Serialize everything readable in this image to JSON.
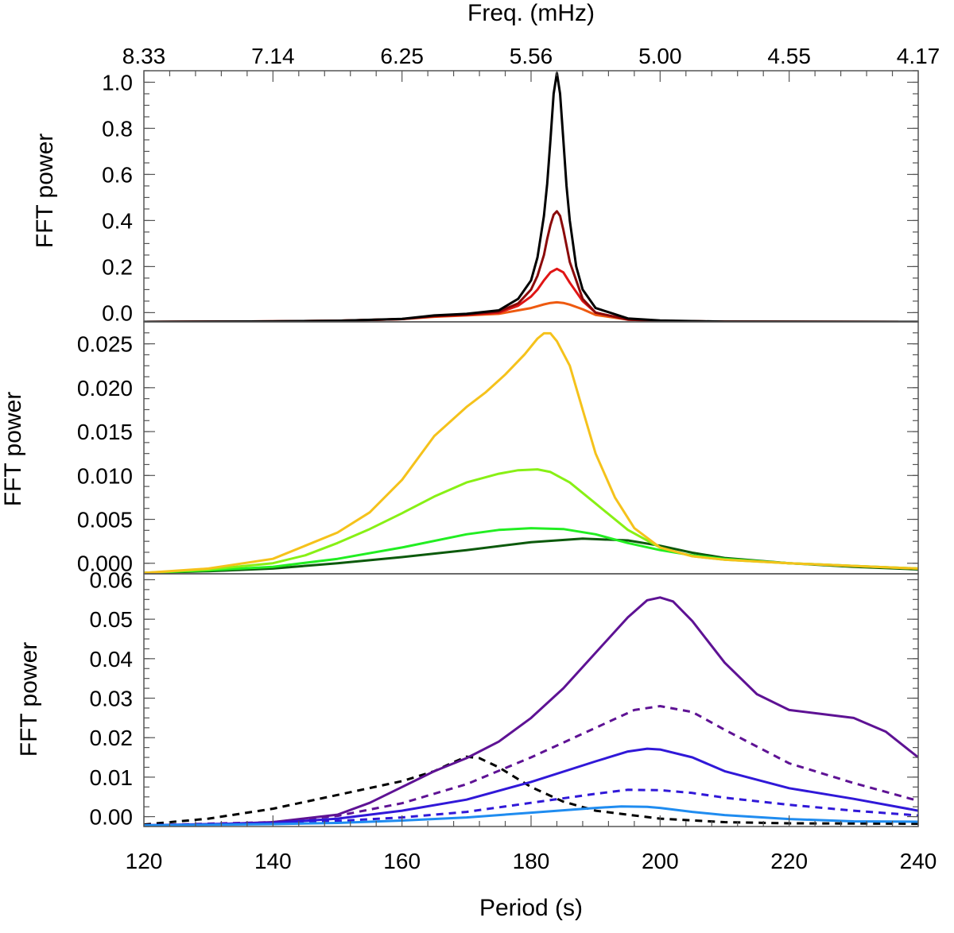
{
  "figure": {
    "top_axis_title": "Freq. (mHz)",
    "bottom_axis_title": "Period (s)",
    "top_tick_labels": [
      "8.33",
      "7.14",
      "6.25",
      "5.56",
      "5.00",
      "4.55",
      "4.17"
    ],
    "bottom_tick_labels": [
      "120",
      "140",
      "160",
      "180",
      "200",
      "220",
      "240"
    ]
  },
  "chart_data": [
    {
      "type": "line",
      "panel": "top",
      "ylabel": "FFT power",
      "xlabel": "Period (s)",
      "xlim": [
        120,
        240
      ],
      "ylim": [
        -0.04,
        1.05
      ],
      "yticks": [
        0.0,
        0.2,
        0.4,
        0.6,
        0.8,
        1.0
      ],
      "ytick_labels": [
        "0.0",
        "0.2",
        "0.4",
        "0.6",
        "0.8",
        "1.0"
      ],
      "series": [
        {
          "name": "orange",
          "color": "#ee5a10",
          "dash": false,
          "x": [
            120,
            140,
            150,
            160,
            165,
            170,
            175,
            178,
            180,
            181,
            182,
            183,
            184,
            185,
            186,
            188,
            190,
            195,
            200,
            210,
            240
          ],
          "y": [
            -0.04,
            -0.038,
            -0.035,
            -0.028,
            -0.018,
            -0.012,
            -0.005,
            0.01,
            0.02,
            0.028,
            0.036,
            0.042,
            0.045,
            0.042,
            0.035,
            0.015,
            -0.01,
            -0.03,
            -0.036,
            -0.039,
            -0.04
          ]
        },
        {
          "name": "red",
          "color": "#e01515",
          "dash": false,
          "x": [
            120,
            140,
            150,
            160,
            165,
            170,
            175,
            178,
            180,
            181,
            182,
            183,
            184,
            185,
            186,
            188,
            190,
            195,
            200,
            210,
            240
          ],
          "y": [
            -0.04,
            -0.038,
            -0.035,
            -0.028,
            -0.016,
            -0.01,
            0.0,
            0.03,
            0.07,
            0.1,
            0.14,
            0.175,
            0.19,
            0.175,
            0.13,
            0.05,
            0.0,
            -0.03,
            -0.036,
            -0.039,
            -0.04
          ]
        },
        {
          "name": "dark-red",
          "color": "#8b0a0a",
          "dash": false,
          "x": [
            120,
            140,
            150,
            160,
            165,
            170,
            175,
            178,
            180,
            181,
            182,
            182.5,
            183,
            183.5,
            184,
            184.5,
            185,
            186,
            188,
            190,
            195,
            200,
            210,
            240
          ],
          "y": [
            -0.04,
            -0.038,
            -0.035,
            -0.028,
            -0.015,
            -0.008,
            0.005,
            0.04,
            0.1,
            0.16,
            0.25,
            0.32,
            0.38,
            0.425,
            0.44,
            0.42,
            0.36,
            0.22,
            0.06,
            0.0,
            -0.03,
            -0.036,
            -0.039,
            -0.04
          ]
        },
        {
          "name": "black",
          "color": "#000000",
          "dash": false,
          "x": [
            120,
            140,
            150,
            160,
            165,
            170,
            175,
            178,
            180,
            181,
            182,
            182.5,
            183,
            183.5,
            184,
            184.5,
            185,
            185.5,
            186,
            187,
            188,
            190,
            195,
            200,
            210,
            240
          ],
          "y": [
            -0.04,
            -0.038,
            -0.035,
            -0.027,
            -0.012,
            -0.005,
            0.01,
            0.06,
            0.14,
            0.24,
            0.42,
            0.56,
            0.75,
            0.95,
            1.04,
            0.95,
            0.75,
            0.55,
            0.4,
            0.2,
            0.1,
            0.02,
            -0.025,
            -0.034,
            -0.039,
            -0.04
          ]
        }
      ]
    },
    {
      "type": "line",
      "panel": "middle",
      "ylabel": "FFT power",
      "xlabel": "Period (s)",
      "xlim": [
        120,
        240
      ],
      "ylim": [
        -0.0012,
        0.0275
      ],
      "yticks": [
        0.0,
        0.005,
        0.01,
        0.015,
        0.02,
        0.025
      ],
      "ytick_labels": [
        "0.000",
        "0.005",
        "0.010",
        "0.015",
        "0.020",
        "0.025"
      ],
      "series": [
        {
          "name": "dark-green",
          "color": "#0c5a0c",
          "dash": false,
          "x": [
            120,
            130,
            140,
            150,
            160,
            170,
            180,
            188,
            195,
            200,
            205,
            210,
            220,
            230,
            240
          ],
          "y": [
            -0.0011,
            -0.0009,
            -0.0006,
            0.0,
            0.0007,
            0.0015,
            0.0024,
            0.0028,
            0.0026,
            0.002,
            0.0012,
            0.0006,
            0.0,
            -0.0004,
            -0.0007
          ]
        },
        {
          "name": "green",
          "color": "#22ee22",
          "dash": false,
          "x": [
            120,
            130,
            140,
            150,
            160,
            170,
            175,
            180,
            185,
            190,
            195,
            200,
            205,
            210,
            220,
            230,
            240
          ],
          "y": [
            -0.0011,
            -0.0008,
            -0.0004,
            0.0005,
            0.0018,
            0.0033,
            0.0038,
            0.004,
            0.0039,
            0.0033,
            0.0023,
            0.0015,
            0.0009,
            0.0005,
            0.0,
            -0.0003,
            -0.0006
          ]
        },
        {
          "name": "lime",
          "color": "#88f015",
          "dash": false,
          "x": [
            120,
            130,
            140,
            145,
            150,
            155,
            160,
            165,
            170,
            175,
            178,
            181,
            183,
            186,
            190,
            195,
            200,
            205,
            210,
            220,
            230,
            240
          ],
          "y": [
            -0.0011,
            -0.0007,
            0.0,
            0.0009,
            0.0023,
            0.0039,
            0.0057,
            0.0076,
            0.0092,
            0.0102,
            0.0106,
            0.0107,
            0.0104,
            0.0092,
            0.0068,
            0.0038,
            0.0018,
            0.0008,
            0.0004,
            0.0,
            -0.0003,
            -0.0006
          ]
        },
        {
          "name": "yellow",
          "color": "#f5c21b",
          "dash": false,
          "x": [
            120,
            130,
            140,
            145,
            150,
            155,
            160,
            165,
            170,
            173,
            176,
            179,
            181,
            182,
            183,
            184,
            186,
            188,
            190,
            193,
            196,
            200,
            205,
            210,
            220,
            230,
            240
          ],
          "y": [
            -0.0011,
            -0.0006,
            0.0005,
            0.002,
            0.0035,
            0.0058,
            0.0095,
            0.0145,
            0.0178,
            0.0195,
            0.0215,
            0.0238,
            0.0256,
            0.0262,
            0.0262,
            0.0253,
            0.0225,
            0.0175,
            0.0125,
            0.0075,
            0.004,
            0.0018,
            0.0008,
            0.0004,
            0.0,
            -0.0003,
            -0.0006
          ]
        }
      ]
    },
    {
      "type": "line",
      "panel": "bottom",
      "ylabel": "FFT power",
      "xlabel": "Period (s)",
      "xlim": [
        120,
        240
      ],
      "ylim": [
        -0.0025,
        0.0615
      ],
      "yticks": [
        0.0,
        0.01,
        0.02,
        0.03,
        0.04,
        0.05,
        0.06
      ],
      "ytick_labels": [
        "0.00",
        "0.01",
        "0.02",
        "0.03",
        "0.04",
        "0.05",
        "0.06"
      ],
      "series": [
        {
          "name": "black-dashed",
          "color": "#000000",
          "dash": true,
          "x": [
            120,
            130,
            140,
            150,
            160,
            165,
            168,
            170,
            172,
            175,
            180,
            185,
            190,
            200,
            210,
            220,
            240
          ],
          "y": [
            -0.002,
            -0.0005,
            0.002,
            0.0055,
            0.009,
            0.0115,
            0.0138,
            0.0152,
            0.0148,
            0.0125,
            0.0075,
            0.0038,
            0.0015,
            -0.0005,
            -0.0014,
            -0.0017,
            -0.0018
          ]
        },
        {
          "name": "purple",
          "color": "#5e1294",
          "dash": false,
          "x": [
            120,
            130,
            140,
            150,
            155,
            160,
            165,
            170,
            175,
            180,
            185,
            190,
            195,
            198,
            200,
            202,
            205,
            210,
            215,
            220,
            225,
            230,
            235,
            240
          ],
          "y": [
            -0.0022,
            -0.002,
            -0.0014,
            0.0005,
            0.0035,
            0.0075,
            0.0115,
            0.0148,
            0.019,
            0.025,
            0.0325,
            0.0415,
            0.0505,
            0.0548,
            0.0555,
            0.0545,
            0.0495,
            0.039,
            0.031,
            0.027,
            0.026,
            0.025,
            0.0215,
            0.015
          ]
        },
        {
          "name": "purple-dashed",
          "color": "#5e1294",
          "dash": true,
          "x": [
            120,
            140,
            150,
            160,
            170,
            180,
            190,
            196,
            200,
            205,
            210,
            220,
            230,
            240
          ],
          "y": [
            -0.0022,
            -0.0014,
            0.0002,
            0.0034,
            0.0082,
            0.015,
            0.0225,
            0.027,
            0.028,
            0.0265,
            0.022,
            0.0135,
            0.0085,
            0.004
          ]
        },
        {
          "name": "blue",
          "color": "#3018d8",
          "dash": false,
          "x": [
            120,
            140,
            150,
            160,
            170,
            180,
            190,
            195,
            198,
            200,
            205,
            210,
            220,
            230,
            240
          ],
          "y": [
            -0.0022,
            -0.0016,
            -0.0005,
            0.0015,
            0.0043,
            0.0088,
            0.014,
            0.0165,
            0.0172,
            0.017,
            0.015,
            0.0115,
            0.0072,
            0.0045,
            0.0015
          ]
        },
        {
          "name": "blue-dashed",
          "color": "#3018d8",
          "dash": true,
          "x": [
            120,
            140,
            150,
            160,
            170,
            180,
            190,
            195,
            200,
            205,
            210,
            220,
            230,
            240
          ],
          "y": [
            -0.0022,
            -0.0017,
            -0.0011,
            -0.0002,
            0.0012,
            0.0035,
            0.0058,
            0.0068,
            0.0067,
            0.006,
            0.0048,
            0.003,
            0.0015,
            0.0003
          ]
        },
        {
          "name": "light-blue",
          "color": "#1f8cf0",
          "dash": false,
          "x": [
            120,
            140,
            150,
            160,
            170,
            180,
            190,
            194,
            198,
            200,
            205,
            210,
            220,
            230,
            240
          ],
          "y": [
            -0.0022,
            -0.0019,
            -0.0016,
            -0.001,
            -0.0002,
            0.001,
            0.0022,
            0.0026,
            0.0025,
            0.0022,
            0.0012,
            0.0004,
            -0.0006,
            -0.0012,
            -0.0013
          ]
        }
      ]
    }
  ]
}
